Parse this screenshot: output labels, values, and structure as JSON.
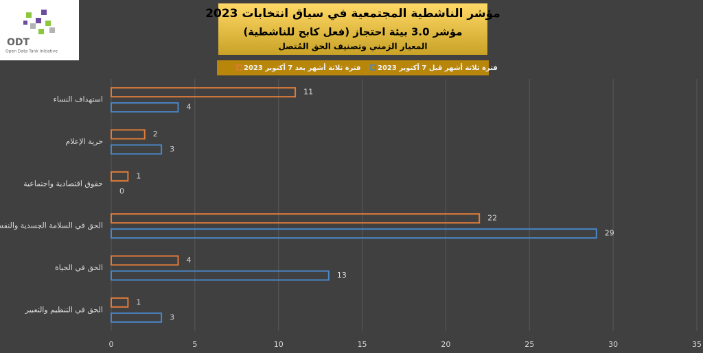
{
  "logo": {
    "title": "ODT",
    "subtitle": "Open Data Tank Initiative"
  },
  "chart_data": {
    "type": "bar",
    "orientation": "horizontal",
    "title": "مؤشر الناشطية المجتمعية في سياق انتخابات 2023",
    "subtitle": "مؤشر 3.0 بيئة احتجاز (فعل كابح للناشطية)",
    "caption": "المعيار الزمني وتصنيف الحق المُتصل",
    "categories": [
      "استهداف النساء",
      "حرية الإعلام",
      "حقوق اقتصادية واجتماعية",
      "الحق في السلامة الجسدية والنفسية",
      "الحق في الحياة",
      "الحق في التنظيم والتعبير"
    ],
    "series": [
      {
        "name": "فترة ثلاثة أشهر بعد 7 أكتوبر 2023",
        "color": "#e07b39",
        "values": [
          11,
          2,
          1,
          22,
          4,
          1
        ]
      },
      {
        "name": "فترة ثلاثة أشهر قبل 7 أكتوبر 2023",
        "color": "#4a86c8",
        "values": [
          4,
          3,
          0,
          29,
          13,
          3
        ]
      }
    ],
    "xlim": [
      0,
      35
    ],
    "xticks": [
      0,
      5,
      10,
      15,
      20,
      25,
      30,
      35
    ],
    "grid": true
  }
}
